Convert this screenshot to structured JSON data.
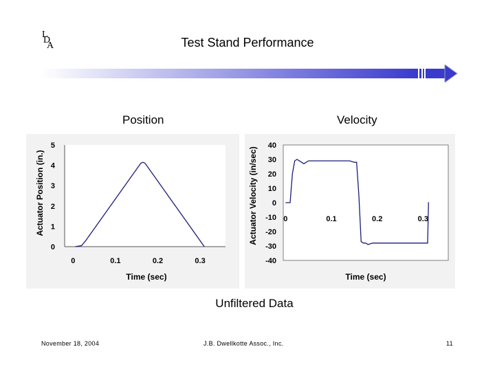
{
  "logo": {
    "l1": "L",
    "l2": "D",
    "l3": "A"
  },
  "slide": {
    "title": "Test Stand Performance",
    "caption": "Unfiltered Data"
  },
  "footer": {
    "date": "November 18, 2004",
    "company": "J.B. Dwellkotte Assoc., Inc.",
    "page": "11"
  },
  "colors": {
    "bar_start": "#ffffff",
    "bar_end": "#3a3acd",
    "line": "#1a1a7a",
    "panel_bg": "#f2f2f2"
  },
  "chart_data": [
    {
      "type": "line",
      "title": "Position",
      "xlabel": "Time (sec)",
      "ylabel": "Actuator Position (in.)",
      "xlim": [
        -0.02,
        0.36
      ],
      "ylim": [
        0,
        5
      ],
      "xticks": [
        "0",
        "0.1",
        "0.2",
        "0.3"
      ],
      "xtick_values": [
        0,
        0.1,
        0.2,
        0.3
      ],
      "yticks": [
        "0",
        "1",
        "2",
        "3",
        "4",
        "5"
      ],
      "ytick_values": [
        0,
        1,
        2,
        3,
        4,
        5
      ],
      "grid": false,
      "series": [
        {
          "x": [
            0.005,
            0.02,
            0.03,
            0.16,
            0.165,
            0.17,
            0.31
          ],
          "y": [
            0,
            0.05,
            0.3,
            4.1,
            4.15,
            4.1,
            0
          ]
        }
      ]
    },
    {
      "type": "line",
      "title": "Velocity",
      "xlabel": "Time (sec)",
      "ylabel": "Actuator Velocity (in/sec)",
      "xlim": [
        -0.005,
        0.355
      ],
      "ylim": [
        -40,
        40
      ],
      "xticks": [
        "0",
        "0.1",
        "0.2",
        "0.3"
      ],
      "xtick_values": [
        0,
        0.1,
        0.2,
        0.3
      ],
      "yticks": [
        "40",
        "30",
        "20",
        "10",
        "0",
        "-10",
        "-20",
        "-30",
        "-40"
      ],
      "ytick_values": [
        40,
        30,
        20,
        10,
        0,
        -10,
        -20,
        -30,
        -40
      ],
      "grid": false,
      "series": [
        {
          "x": [
            0,
            0.01,
            0.015,
            0.02,
            0.025,
            0.03,
            0.04,
            0.05,
            0.06,
            0.1,
            0.14,
            0.15,
            0.155,
            0.16,
            0.165,
            0.17,
            0.175,
            0.18,
            0.19,
            0.2,
            0.24,
            0.3,
            0.31,
            0.312,
            0.313
          ],
          "y": [
            0,
            0,
            20,
            29,
            30,
            29,
            27,
            29,
            29,
            29,
            29,
            28,
            28,
            5,
            -27,
            -28,
            -28,
            -29,
            -28,
            -28,
            -28,
            -28,
            -28,
            0,
            0
          ]
        }
      ]
    }
  ]
}
